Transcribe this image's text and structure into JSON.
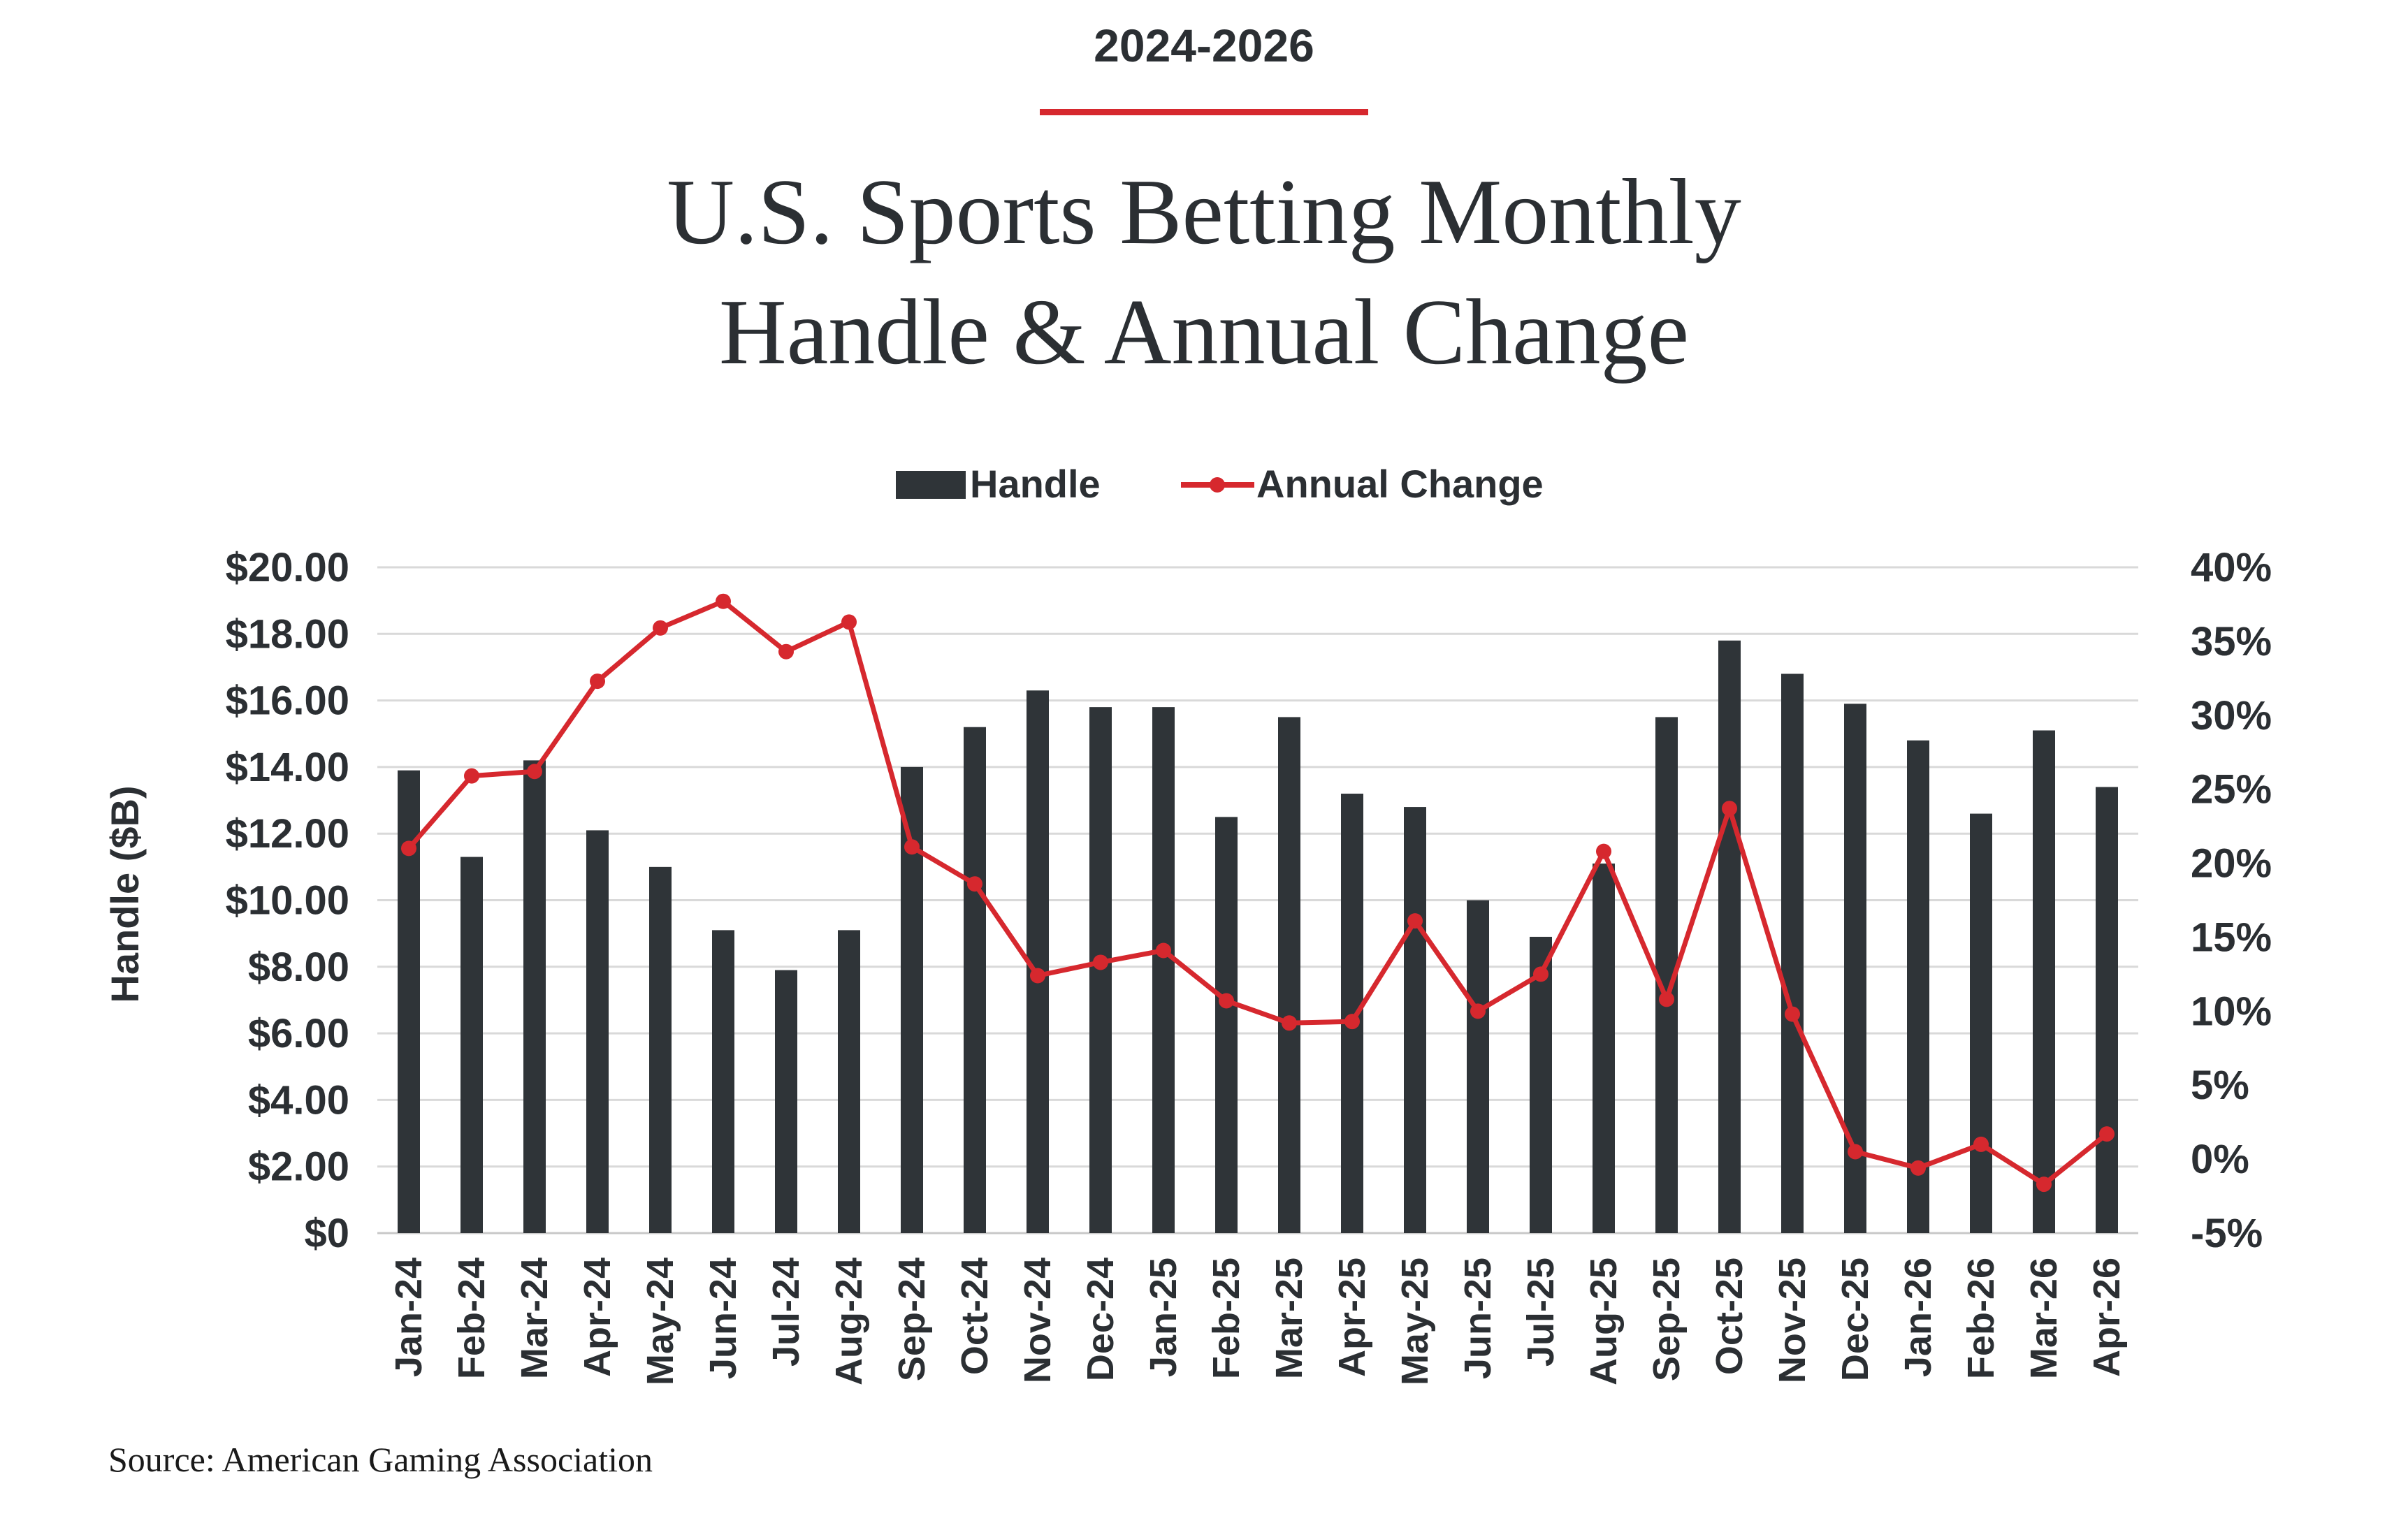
{
  "header": {
    "kicker": "2024-2026",
    "title_line1": "U.S. Sports Betting Monthly",
    "title_line2": "Handle & Annual Change",
    "source": "Source: American Gaming Association"
  },
  "colors": {
    "bar": "#2f3438",
    "line": "#d6282e",
    "accent_rule": "#d6282e",
    "text": "#2b2f33",
    "grid": "#d9d9d9"
  },
  "chart_data": {
    "type": "bar",
    "categories": [
      "Jan-24",
      "Feb-24",
      "Mar-24",
      "Apr-24",
      "May-24",
      "Jun-24",
      "Jul-24",
      "Aug-24",
      "Sep-24",
      "Oct-24",
      "Nov-24",
      "Dec-24",
      "Jan-25",
      "Feb-25",
      "Mar-25",
      "Apr-25",
      "May-25",
      "Jun-25",
      "Jul-25",
      "Aug-25",
      "Sep-25",
      "Oct-25",
      "Nov-25",
      "Dec-25",
      "Jan-26",
      "Feb-26",
      "Mar-26",
      "Apr-26"
    ],
    "series": [
      {
        "name": "Handle",
        "type": "bar",
        "axis": "left",
        "values": [
          13.9,
          11.3,
          14.2,
          12.1,
          11.0,
          9.1,
          7.9,
          9.1,
          14.0,
          15.2,
          16.3,
          15.8,
          15.8,
          12.5,
          15.5,
          13.2,
          12.8,
          10.0,
          8.9,
          11.1,
          15.5,
          17.8,
          16.8,
          15.9,
          14.8,
          12.6,
          15.1,
          13.4
        ]
      },
      {
        "name": "Annual Change",
        "type": "line",
        "axis": "right",
        "values": [
          21.0,
          25.9,
          26.2,
          32.3,
          35.9,
          37.7,
          34.3,
          36.3,
          21.1,
          18.6,
          12.4,
          13.3,
          14.1,
          10.7,
          9.2,
          9.3,
          16.1,
          10.0,
          12.5,
          20.8,
          10.8,
          23.7,
          9.8,
          0.5,
          -0.6,
          1.0,
          -1.7,
          1.7
        ]
      }
    ],
    "ylabel": "Handle ($B)",
    "ylim": [
      0,
      20
    ],
    "y_ticks": [
      "$0",
      "$2.00",
      "$4.00",
      "$6.00",
      "$8.00",
      "$10.00",
      "$12.00",
      "$14.00",
      "$16.00",
      "$18.00",
      "$20.00"
    ],
    "y2lim": [
      -5,
      40
    ],
    "y2_ticks": [
      "-5%",
      "0%",
      "5%",
      "10%",
      "15%",
      "20%",
      "25%",
      "30%",
      "35%",
      "40%"
    ],
    "grid": true,
    "legend_position": "top-center",
    "legend": [
      "Handle",
      "Annual Change"
    ]
  }
}
